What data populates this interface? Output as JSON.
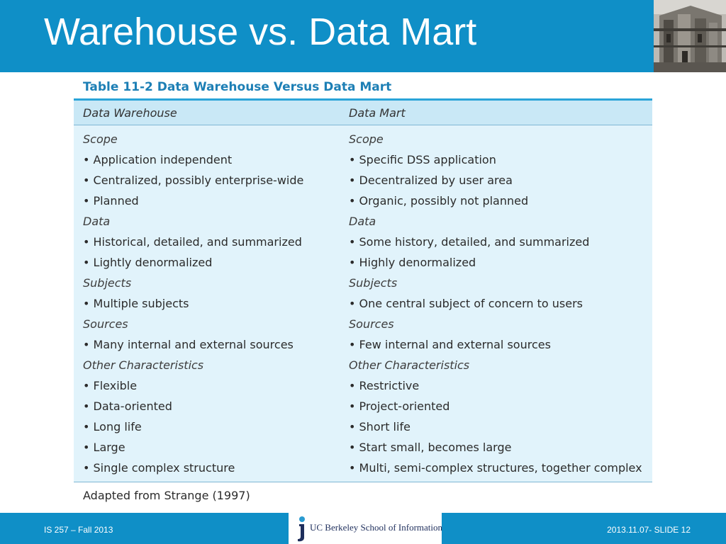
{
  "slide": {
    "title": "Warehouse vs. Data Mart"
  },
  "table": {
    "caption": "Table 11-2  Data Warehouse Versus Data Mart",
    "columns": [
      "Data Warehouse",
      "Data Mart"
    ],
    "left_rows": [
      "Scope",
      "• Application independent",
      "• Centralized, possibly enterprise-wide",
      "• Planned",
      "Data",
      "• Historical, detailed, and summarized",
      "• Lightly denormalized",
      "Subjects",
      "• Multiple subjects",
      "Sources",
      "• Many internal and external sources",
      "Other Characteristics",
      "• Flexible",
      "• Data-oriented",
      "• Long life",
      "• Large",
      "• Single complex structure"
    ],
    "right_rows": [
      "Scope",
      "• Specific DSS application",
      "• Decentralized by user area",
      "• Organic, possibly not planned",
      "Data",
      "• Some history, detailed, and summarized",
      "• Highly denormalized",
      "Subjects",
      "• One central subject of concern to users",
      "Sources",
      "• Few internal and external sources",
      "Other Characteristics",
      "• Restrictive",
      "• Project-oriented",
      "• Short life",
      "• Start small, becomes large",
      "• Multi, semi-complex structures, together complex"
    ],
    "source_note": "Adapted from Strange (1997)"
  },
  "footer": {
    "left": "IS 257 – Fall 2013",
    "logo_text": "UC Berkeley School of Information",
    "right": "2013.11.07- SLIDE 12"
  },
  "colors": {
    "band_blue": "#0f8fc7",
    "caption_blue": "#1d7fb5",
    "header_band": "#c9e8f6",
    "body_band": "#e1f3fb"
  },
  "icons": {
    "header_photo": "campus-building-photo",
    "footer_logo": "uc-berkeley-ischool-logo"
  }
}
